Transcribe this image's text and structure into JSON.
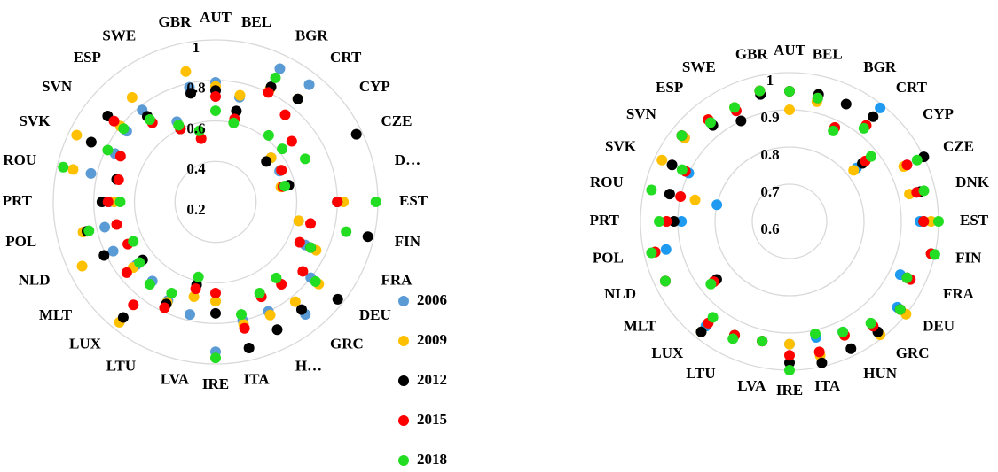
{
  "chart_data": [
    {
      "type": "radar",
      "categories": [
        "AUT",
        "BEL",
        "BGR",
        "CRT",
        "CYP",
        "CZE",
        "D…",
        "EST",
        "FIN",
        "FRA",
        "DEU",
        "GRC",
        "H…",
        "ITA",
        "IRE",
        "LVA",
        "LTU",
        "LUX",
        "MLT",
        "NLD",
        "POL",
        "PRT",
        "ROU",
        "SVK",
        "SVN",
        "ESP",
        "SWE",
        "GBR"
      ],
      "ylim": [
        0.2,
        1
      ],
      "yticks": [
        0.2,
        0.4,
        0.6,
        0.8,
        1
      ],
      "grid": true,
      "legend": "right",
      "series": [
        {
          "name": "2006",
          "color": "#5b9bd5",
          "values": [
            0.79,
            0.73,
            0.93,
            0.94,
            0.55,
            0.55,
            0.55,
            0.8,
            0.62,
            0.69,
            0.8,
            0.91,
            0.8,
            0.8,
            0.94,
            0.77,
            0.74,
            0.7,
            0.7,
            0.76,
            0.76,
            0.72,
            0.83,
            0.75,
            0.76,
            0.78,
            0.64,
            0.78
          ]
        },
        {
          "name": "2009",
          "color": "#ffc000",
          "values": [
            0.77,
            0.74,
            0.82,
            0.85,
            0.55,
            0.56,
            0.53,
            0.83,
            0.62,
            0.75,
            0.85,
            0.83,
            0.82,
            0.82,
            0.69,
            0.68,
            0.75,
            0.96,
            0.72,
            0.93,
            0.87,
            0.7,
            0.92,
            0.96,
            0.8,
            0.86,
            0.62,
            0.86
          ]
        },
        {
          "name": "2012",
          "color": "#000000",
          "values": [
            0.75,
            0.66,
            0.83,
            0.85,
            0.52,
            0.97,
            0.57,
            0.8,
            0.97,
            0.72,
            0.97,
            0.88,
            0.9,
            0.94,
            0.75,
            0.62,
            0.76,
            0.93,
            0.66,
            0.81,
            0.85,
            0.76,
            0.7,
            0.88,
            0.88,
            0.74,
            0.6,
            0.75
          ]
        },
        {
          "name": "2015",
          "color": "#ff0000",
          "values": [
            0.72,
            0.62,
            0.8,
            0.75,
            0.68,
            0.56,
            0.54,
            0.8,
            0.68,
            0.66,
            0.75,
            0.72,
            0.72,
            0.84,
            0.65,
            0.64,
            0.78,
            0.85,
            0.76,
            0.68,
            0.7,
            0.73,
            0.69,
            0.72,
            0.84,
            0.7,
            0.6,
            0.52
          ]
        },
        {
          "name": "2018",
          "color": "#22dd22",
          "values": [
            0.65,
            0.6,
            0.88,
            0.62,
            0.62,
            0.69,
            0.55,
            0.99,
            0.86,
            0.72,
            0.83,
            0.68,
            0.7,
            0.77,
            0.97,
            0.58,
            0.7,
            0.72,
            0.68,
            0.65,
            0.84,
            0.67,
            0.97,
            0.79,
            0.78,
            0.72,
            0.62,
            0.56
          ]
        }
      ]
    },
    {
      "type": "radar",
      "categories": [
        "AUT",
        "BEL",
        "BGR",
        "CRT",
        "CYP",
        "CZE",
        "DNK",
        "EST",
        "FIN",
        "FRA",
        "DEU",
        "GRC",
        "HUN",
        "ITA",
        "IRE",
        "LVA",
        "LTU",
        "LUX",
        "MLT",
        "NLD",
        "POL",
        "PRT",
        "ROU",
        "SVK",
        "SVN",
        "ESP",
        "SWE",
        "GBR"
      ],
      "ylim": [
        0.6,
        1
      ],
      "yticks": [
        0.6,
        0.7,
        0.8,
        0.9,
        1
      ],
      "grid": true,
      "series": [
        {
          "color": "#1e9bf0",
          "values": [
            0.95,
            0.94,
            0.88,
            0.99,
            0.83,
            0.95,
            0.95,
            0.95,
            1.0,
            0.93,
            0.97,
            0.96,
            0.93,
            0.92,
            0.93,
            0.93,
            0.94,
            0.96,
            0.86,
            0.97,
            0.94,
            0.89,
            0.8,
            0.9,
            0.96,
            0.94,
            0.93,
            0.95
          ]
        },
        {
          "color": "#ffc000",
          "values": [
            0.9,
            0.93,
            0.88,
            0.93,
            0.82,
            0.94,
            0.93,
            0.98,
            0.99,
            0.95,
            1.0,
            0.99,
            0.94,
            0.97,
            0.93,
            0.93,
            0.94,
            0.98,
            0.86,
            0.97,
            0.97,
            0.93,
            0.86,
            0.98,
            0.96,
            0.95,
            0.94,
            0.96
          ]
        },
        {
          "color": "#000000",
          "values": [
            0.95,
            0.95,
            0.95,
            0.96,
            0.85,
            1.0,
            0.96,
            0.96,
            0.99,
            0.95,
            0.98,
            0.98,
            0.98,
            0.99,
            0.98,
            0.93,
            0.94,
            0.98,
            0.85,
            0.97,
            0.97,
            0.91,
            0.93,
            0.95,
            0.97,
            0.93,
            0.9,
            0.95
          ]
        },
        {
          "color": "#ff0000",
          "values": [
            0.95,
            0.94,
            0.88,
            0.93,
            0.86,
            0.95,
            0.95,
            0.96,
            0.99,
            0.96,
            0.98,
            0.96,
            0.94,
            0.96,
            0.96,
            0.93,
            0.94,
            0.95,
            0.86,
            0.97,
            0.97,
            0.93,
            0.9,
            0.91,
            0.97,
            0.95,
            0.93,
            0.96
          ]
        },
        {
          "color": "#22dd22",
          "values": [
            0.95,
            0.94,
            0.87,
            0.92,
            0.88,
            0.98,
            0.97,
            1.0,
            1.0,
            0.95,
            0.98,
            0.95,
            0.93,
            0.91,
            1.0,
            0.93,
            0.95,
            0.93,
            0.87,
            0.97,
            0.98,
            0.95,
            0.98,
            0.92,
            0.97,
            0.94,
            0.94,
            0.96
          ]
        }
      ]
    }
  ]
}
